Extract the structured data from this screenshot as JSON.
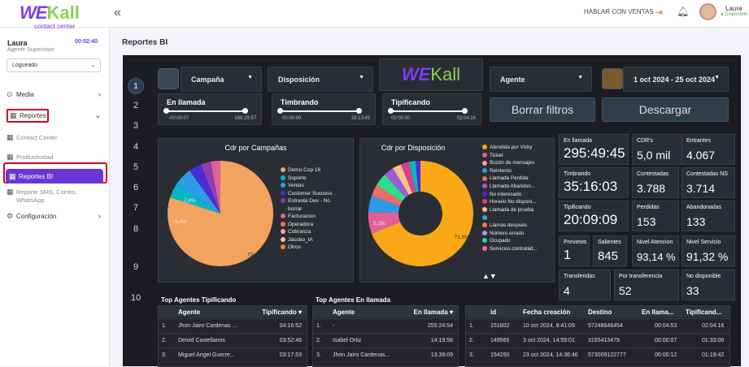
{
  "header": {
    "logo_main": "WE",
    "logo_accent": "Kall",
    "logo_sub": "contact center",
    "collapse_icon": "«",
    "sales_link": "HABLAR CON VENTAS",
    "user_name": "Laura",
    "user_status": "● Disponible"
  },
  "sidebar": {
    "user": "Laura",
    "role": "Agente Supervisor",
    "timer": "00:02:40",
    "state": "Logueado",
    "items": [
      {
        "label": "Media",
        "icon": "play-circle-icon"
      },
      {
        "label": "Reportes",
        "icon": "chart-icon"
      },
      {
        "label": "Contact Center"
      },
      {
        "label": "Productividad"
      },
      {
        "label": "Reportes BI"
      },
      {
        "label": "Reporte SMS, Correo,"
      },
      {
        "label": "WhatsApp"
      },
      {
        "label": "Configuración"
      }
    ]
  },
  "page": {
    "title": "Reportes BI"
  },
  "dashboard": {
    "pages": [
      "1",
      "2",
      "3",
      "4",
      "5",
      "6",
      "7",
      "8",
      "9",
      "10"
    ],
    "filters": {
      "campaign": "Campaña",
      "disposition": "Disposición",
      "agent": "Agente",
      "date_range": "1 oct 2024 - 25 oct 2024",
      "logo": "Kall"
    },
    "sliders": [
      {
        "label": "En llamada",
        "min": "-00:00:07",
        "max": "188:29:57"
      },
      {
        "label": "Timbrando",
        "min": "00:00:00",
        "max": "18:13:49"
      },
      {
        "label": "Tipificando",
        "min": "00:00:00",
        "max": "02:04:16"
      }
    ],
    "buttons": {
      "clear": "Borrar filtros",
      "download": "Descargar"
    },
    "pie_campaigns": {
      "title": "Cdr por Campañas",
      "labels": [
        "72,2%",
        "9,4%",
        "7,6%"
      ],
      "legend": [
        "Demo Cop 16",
        "Soporte",
        "Ventas",
        "Customer Success",
        "Entrante Dev - No",
        "borrar",
        "Facturacion",
        "Operadora",
        "Cobranza",
        "Jacobo_IA",
        "Otros"
      ]
    },
    "pie_disposition": {
      "title": "Cdr por Disposición",
      "labels": [
        "71,6%",
        "5,1%"
      ],
      "legend": [
        "Atendida por Vicky",
        "Ticket",
        "Buzón de mensajes",
        "Reintento",
        "Llamada Perdida",
        "Llamada Abandon...",
        "No interesado",
        "Horario No disponi...",
        "Llamada de prueba",
        "",
        "Llamas después",
        "Número errado",
        "Ocupado",
        "Servicios contratad..."
      ],
      "nav": "▲▼"
    },
    "kpis": [
      {
        "label": "En llamada",
        "value": "295:49:45"
      },
      {
        "label": "CDR's",
        "value": "5,0 mil"
      },
      {
        "label": "Entrantes",
        "value": "4.067"
      },
      {
        "label": "Timbrando",
        "value": "35:16:03"
      },
      {
        "label": "Contestadas",
        "value": "3.788"
      },
      {
        "label": "Contestadas NS",
        "value": "3.714"
      },
      {
        "label": "Tipificando",
        "value": "20:09:09"
      },
      {
        "label": "Perdidas",
        "value": "153"
      },
      {
        "label": "Abandonadas",
        "value": "133"
      },
      {
        "label": "Previews",
        "value": "1"
      },
      {
        "label": "Salientes",
        "value": "845"
      },
      {
        "label": "Nivel Atencion",
        "value": "93,14 %"
      },
      {
        "label": "Nivel Servicio",
        "value": "91,32 %"
      },
      {
        "label": "Transferidas",
        "value": "4"
      },
      {
        "label": "Por transferencia",
        "value": "52"
      },
      {
        "label": "No disponible",
        "value": "33"
      }
    ],
    "table1": {
      "title": "Top Agentes Tipificando",
      "cols": [
        "Agente",
        "Tipificando ▾"
      ],
      "rows": [
        [
          "1.",
          "Jhon Jairo Cardenas ...",
          "04:16:52"
        ],
        [
          "2.",
          "Deivid Castellanos",
          "03:52:46"
        ],
        [
          "3.",
          "Miguel Angel Guerre...",
          "03:17:53"
        ]
      ]
    },
    "table2": {
      "title": "Top Agentes En llamada",
      "cols": [
        "Agente",
        "En llamada ▾"
      ],
      "rows": [
        [
          "1.",
          "-",
          "255:24:54"
        ],
        [
          "2.",
          "Isabel Ortiz",
          "14:19:58"
        ],
        [
          "3.",
          "Jhon Jairo Cardenas...",
          "13:39:09"
        ]
      ]
    },
    "table3": {
      "cols": [
        "id",
        "Fecha creación",
        "Destino",
        "En llama...",
        "Tipificand..."
      ],
      "rows": [
        [
          "1.",
          "151802",
          "10 oct 2024, 8:41:09",
          "57248646454",
          "00:04:53",
          "02:04:16"
        ],
        [
          "2.",
          "149565",
          "3 oct 2024, 14:59:01",
          "3165413479",
          "00:00:07",
          "01:33:06"
        ],
        [
          "3.",
          "154250",
          "23 oct 2024, 14:36:46",
          "573009122777",
          "00:00:12",
          "01:19:42"
        ]
      ]
    }
  }
}
